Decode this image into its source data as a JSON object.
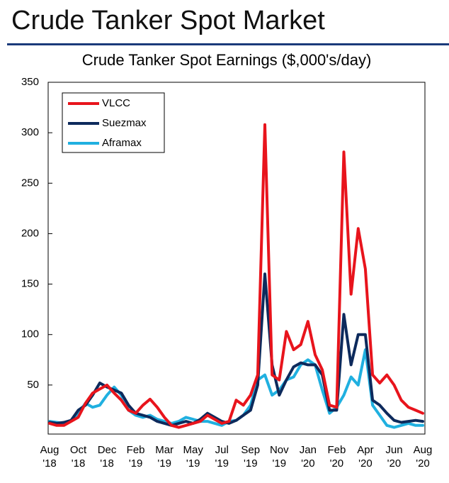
{
  "page_title": "Crude Tanker Spot Market",
  "chart_data": {
    "type": "line",
    "title": "Crude Tanker Spot Earnings ($,000's/day)",
    "categories": [
      "Aug '18",
      null,
      null,
      null,
      "Oct '18",
      null,
      null,
      null,
      "Dec '18",
      null,
      null,
      null,
      "Feb '19",
      null,
      null,
      null,
      "Mar '19",
      null,
      null,
      null,
      "May '19",
      null,
      null,
      null,
      "Jul '19",
      null,
      null,
      null,
      "Sep '19",
      null,
      null,
      null,
      "Nov '19",
      null,
      null,
      null,
      "Jan '20",
      null,
      null,
      null,
      "Feb '20",
      null,
      null,
      null,
      "Apr '20",
      null,
      null,
      null,
      "Jun '20",
      null,
      null,
      null,
      "Aug '20"
    ],
    "series": [
      {
        "name": "VLCC",
        "color": "#e8141c",
        "values": [
          12,
          10,
          10,
          14,
          18,
          32,
          42,
          46,
          50,
          42,
          35,
          25,
          22,
          30,
          36,
          28,
          18,
          10,
          8,
          10,
          12,
          14,
          20,
          16,
          12,
          14,
          35,
          30,
          40,
          60,
          308,
          60,
          55,
          103,
          85,
          90,
          113,
          80,
          65,
          30,
          28,
          281,
          140,
          205,
          165,
          60,
          52,
          60,
          50,
          35,
          28,
          25,
          22
        ]
      },
      {
        "name": "Suezmax",
        "color": "#0d2a5c",
        "values": [
          13,
          12,
          13,
          15,
          25,
          30,
          40,
          52,
          48,
          45,
          42,
          30,
          22,
          20,
          18,
          14,
          12,
          10,
          12,
          14,
          12,
          16,
          22,
          18,
          14,
          12,
          15,
          20,
          25,
          50,
          160,
          70,
          40,
          55,
          68,
          72,
          70,
          70,
          60,
          25,
          25,
          120,
          70,
          100,
          100,
          35,
          30,
          22,
          15,
          13,
          14,
          15,
          14
        ]
      },
      {
        "name": "Aframax",
        "color": "#20b0e0",
        "values": [
          14,
          13,
          12,
          15,
          22,
          32,
          28,
          30,
          40,
          48,
          40,
          25,
          20,
          18,
          20,
          16,
          14,
          12,
          14,
          18,
          16,
          14,
          14,
          12,
          10,
          14,
          15,
          20,
          30,
          55,
          60,
          40,
          45,
          55,
          58,
          70,
          75,
          70,
          45,
          22,
          28,
          40,
          58,
          50,
          85,
          30,
          20,
          10,
          8,
          10,
          12,
          10,
          10
        ]
      }
    ],
    "ylim": [
      0,
      350
    ],
    "yticks": [
      50,
      100,
      150,
      200,
      250,
      300,
      350
    ],
    "legend": "upper left"
  }
}
